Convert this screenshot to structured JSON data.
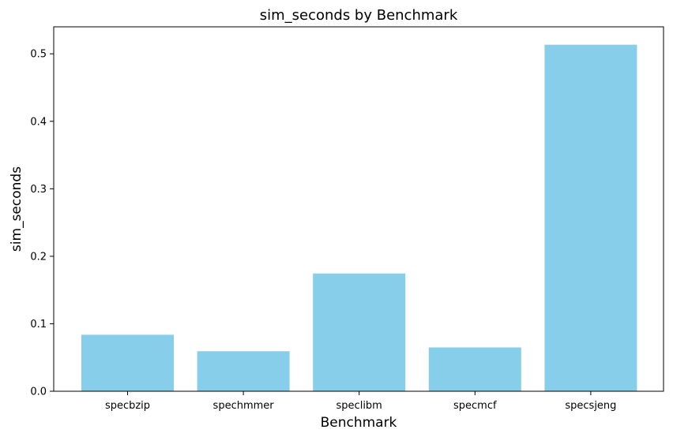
{
  "chart_data": {
    "type": "bar",
    "title": "sim_seconds by Benchmark",
    "xlabel": "Benchmark",
    "ylabel": "sim_seconds",
    "categories": [
      "specbzip",
      "spechmmer",
      "speclibm",
      "specmcf",
      "specsjeng"
    ],
    "values": [
      0.0837,
      0.0593,
      0.1745,
      0.0649,
      0.5135
    ],
    "ylim": [
      0,
      0.54
    ],
    "yticks": [
      "0.0",
      "0.1",
      "0.2",
      "0.3",
      "0.4",
      "0.5"
    ],
    "bar_color": "#87CEEB",
    "grid": false
  }
}
